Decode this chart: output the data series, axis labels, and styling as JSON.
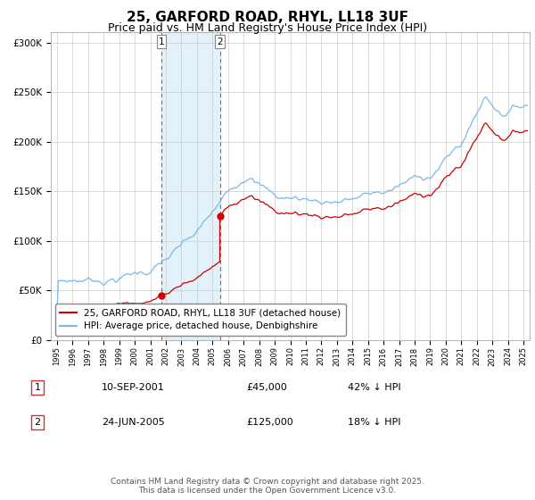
{
  "title": "25, GARFORD ROAD, RHYL, LL18 3UF",
  "subtitle": "Price paid vs. HM Land Registry's House Price Index (HPI)",
  "ylim": [
    0,
    310000
  ],
  "yticks": [
    0,
    50000,
    100000,
    150000,
    200000,
    250000,
    300000
  ],
  "ytick_labels": [
    "£0",
    "£50K",
    "£100K",
    "£150K",
    "£200K",
    "£250K",
    "£300K"
  ],
  "hpi_color": "#7ab8e8",
  "price_color": "#cc0000",
  "sale1_date_label": "10-SEP-2001",
  "sale1_price": 45000,
  "sale1_price_label": "£45,000",
  "sale1_hpi_label": "42% ↓ HPI",
  "sale1_year": 2001.71,
  "sale2_date_label": "24-JUN-2005",
  "sale2_price": 125000,
  "sale2_price_label": "£125,000",
  "sale2_hpi_label": "18% ↓ HPI",
  "sale2_year": 2005.47,
  "legend_label_price": "25, GARFORD ROAD, RHYL, LL18 3UF (detached house)",
  "legend_label_hpi": "HPI: Average price, detached house, Denbighshire",
  "footer": "Contains HM Land Registry data © Crown copyright and database right 2025.\nThis data is licensed under the Open Government Licence v3.0.",
  "bg_color": "#ffffff",
  "plot_bg_color": "#ffffff",
  "grid_color": "#cccccc",
  "shade_color": "#d0e8f8",
  "shade_alpha": 0.6,
  "vline_color": "#dd4444",
  "title_fontsize": 11,
  "subtitle_fontsize": 9,
  "tick_fontsize": 7.5,
  "legend_fontsize": 7.5,
  "footer_fontsize": 6.5
}
